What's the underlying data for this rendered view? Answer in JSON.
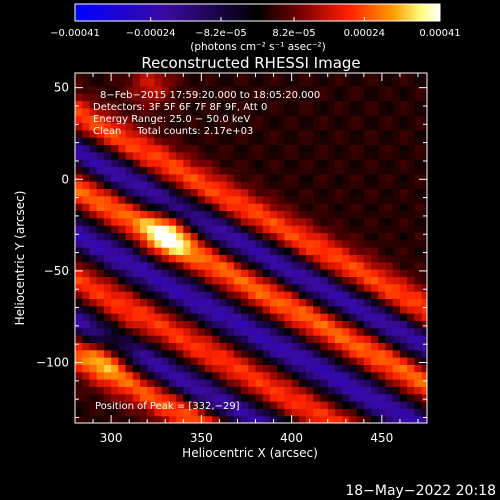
{
  "chart_data": {
    "type": "heatmap",
    "title": "Reconstructed RHESSI Image",
    "xlabel": "Heliocentric X (arcsec)",
    "ylabel": "Heliocentric Y (arcsec)",
    "xlim": [
      280,
      475
    ],
    "ylim": [
      -133,
      58
    ],
    "x_ticks": [
      300,
      350,
      400,
      450
    ],
    "x_tick_labels": [
      "300",
      "350",
      "400",
      "450"
    ],
    "y_ticks": [
      50,
      0,
      -50,
      -100
    ],
    "y_tick_labels": [
      "50",
      "0",
      "−50",
      "−100"
    ],
    "colorbar": {
      "ticks": [
        -0.00041,
        -0.00024,
        -8.2e-05,
        8.2e-05,
        0.00024,
        0.00041
      ],
      "tick_labels": [
        "−0.00041",
        "−0.00024",
        "−8.2e−05",
        "8.2e−05",
        "0.00024",
        "0.00041"
      ],
      "label": "(photons cm⁻² s⁻¹ asec⁻²)",
      "range": [
        -0.00041,
        0.00041
      ],
      "colors": [
        "#0000ff",
        "#3a0aa0",
        "#000000",
        "#7a0000",
        "#ff2000",
        "#ff9a00",
        "#ffff80",
        "#ffffff"
      ]
    },
    "peak": {
      "x": 332,
      "y": -29,
      "value": 0.00041
    },
    "bands_note_values": {
      "bright_band_centers_x300": [
        25,
        -15,
        -65,
        -105
      ],
      "band_slope": -0.55
    },
    "annotations": [
      "8−Feb−2015 17:59:20.000 to 18:05:20.000",
      "Detectors: 3F 5F 6F 7F 8F 9F, Att 0",
      "Energy Range: 25.0 − 50.0 keV",
      "Clean     Total counts: 2.17e+03",
      "Position of Peak = [332,−29]"
    ]
  },
  "footer": {
    "timestamp": "18−May−2022 20:18"
  }
}
